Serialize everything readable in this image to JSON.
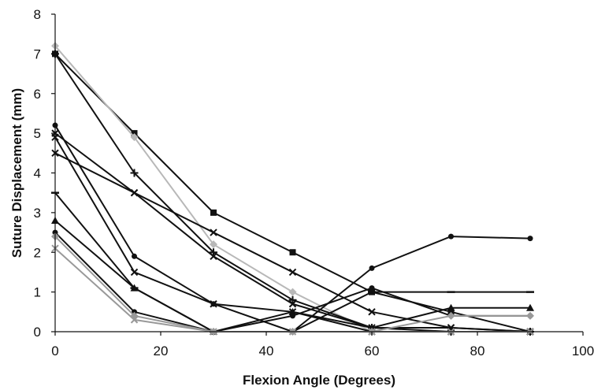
{
  "chart_data": {
    "type": "line",
    "title": "",
    "xlabel": "Flexion Angle (Degrees)",
    "ylabel": "Suture Displacement (mm)",
    "xlim": [
      0,
      100
    ],
    "ylim": [
      0,
      8
    ],
    "xticks": [
      0,
      20,
      40,
      60,
      80,
      100
    ],
    "yticks": [
      0,
      1,
      2,
      3,
      4,
      5,
      6,
      7,
      8
    ],
    "grid": false,
    "legend": "none",
    "series": [
      {
        "marker": "square",
        "color": "#111111",
        "x": [
          0,
          15,
          30,
          45,
          60,
          75,
          90
        ],
        "y": [
          7.0,
          5.0,
          3.0,
          2.0,
          1.0,
          0.5,
          0.0
        ]
      },
      {
        "marker": "diamond",
        "color": "#b8b8b8",
        "x": [
          0,
          15,
          30,
          45,
          60,
          75,
          90
        ],
        "y": [
          7.2,
          4.9,
          2.2,
          1.0,
          0.0,
          0.0,
          0.0
        ]
      },
      {
        "marker": "plus",
        "color": "#111111",
        "x": [
          0,
          15,
          30,
          45,
          60,
          75,
          90
        ],
        "y": [
          7.0,
          4.0,
          2.0,
          0.8,
          0.1,
          0.0,
          0.0
        ]
      },
      {
        "marker": "circle",
        "color": "#111111",
        "x": [
          0,
          15,
          30,
          45,
          60,
          75,
          90
        ],
        "y": [
          5.2,
          1.9,
          0.7,
          0.0,
          1.6,
          2.4,
          2.35
        ]
      },
      {
        "marker": "x",
        "color": "#111111",
        "x": [
          0,
          15,
          30,
          45,
          60,
          75,
          90
        ],
        "y": [
          5.0,
          3.5,
          1.9,
          0.7,
          0.1,
          0.1,
          0.0
        ]
      },
      {
        "marker": "x",
        "color": "#111111",
        "x": [
          0,
          15,
          30,
          45,
          60,
          75,
          90
        ],
        "y": [
          4.5,
          3.5,
          2.5,
          1.5,
          0.5,
          0.1,
          0.0
        ]
      },
      {
        "marker": "x",
        "color": "#111111",
        "x": [
          0,
          15,
          30,
          45,
          60,
          75,
          90
        ],
        "y": [
          4.9,
          1.5,
          0.7,
          0.5,
          0.0,
          0.0,
          0.0
        ]
      },
      {
        "marker": "dash",
        "color": "#111111",
        "x": [
          0,
          15,
          30,
          45,
          60,
          75,
          90
        ],
        "y": [
          3.5,
          1.1,
          0.0,
          0.0,
          1.0,
          1.0,
          1.0
        ]
      },
      {
        "marker": "triangle",
        "color": "#111111",
        "x": [
          0,
          15,
          30,
          45,
          60,
          75,
          90
        ],
        "y": [
          2.8,
          1.1,
          0.0,
          0.5,
          0.1,
          0.6,
          0.6
        ]
      },
      {
        "marker": "circle",
        "color": "#111111",
        "x": [
          0,
          15,
          30,
          45,
          60,
          75,
          90
        ],
        "y": [
          2.5,
          0.5,
          0.0,
          0.4,
          1.1,
          0.4,
          0.4
        ]
      },
      {
        "marker": "diamond",
        "color": "#999999",
        "x": [
          0,
          15,
          30,
          45,
          60,
          75,
          90
        ],
        "y": [
          2.4,
          0.4,
          0.0,
          0.0,
          0.0,
          0.4,
          0.4
        ]
      },
      {
        "marker": "x",
        "color": "#999999",
        "x": [
          0,
          15,
          30,
          45,
          60,
          75,
          90
        ],
        "y": [
          2.1,
          0.3,
          0.0,
          0.0,
          0.0,
          0.0,
          0.0
        ]
      }
    ]
  }
}
